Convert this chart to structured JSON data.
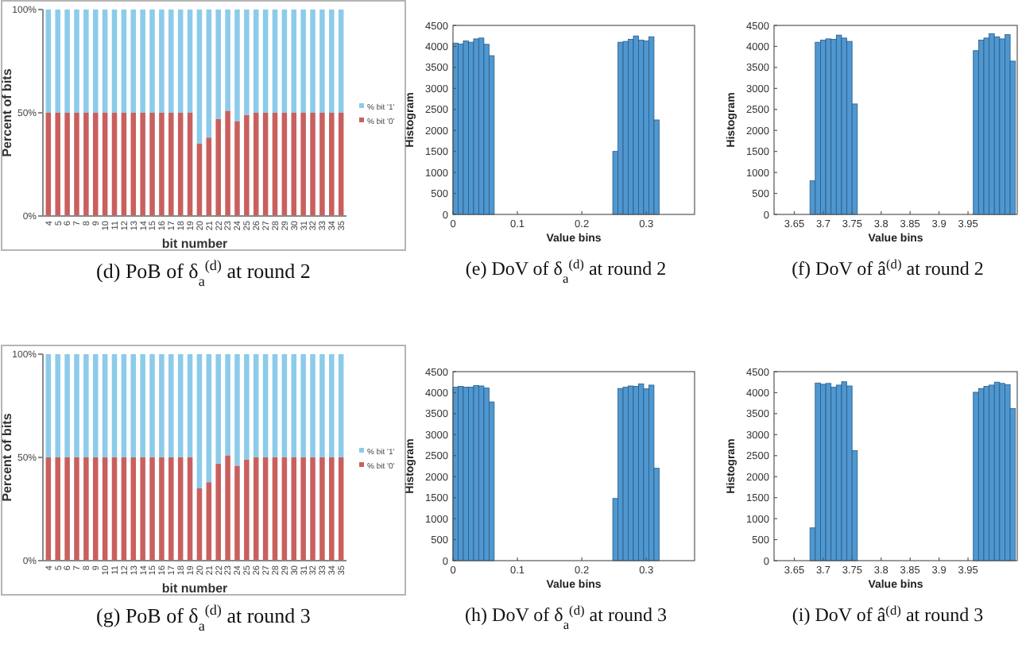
{
  "chart_data": [
    {
      "type": "bar",
      "title": "(d) PoB of δ$_{a}$$^{(d)}$ at round 2",
      "xlabel": "bit number",
      "ylabel": "Percent of bits",
      "categories": [
        "4",
        "5",
        "6",
        "7",
        "8",
        "9",
        "10",
        "11",
        "12",
        "13",
        "14",
        "15",
        "16",
        "17",
        "18",
        "19",
        "20",
        "21",
        "22",
        "23",
        "24",
        "25",
        "26",
        "27",
        "28",
        "29",
        "30",
        "31",
        "32",
        "33",
        "34",
        "35"
      ],
      "stacked": true,
      "legend": "right",
      "ylim": [
        0,
        100
      ],
      "yticks": [
        {
          "value": 0,
          "label": "0%"
        },
        {
          "value": 50,
          "label": "50%"
        },
        {
          "value": 100,
          "label": "100%"
        }
      ],
      "series": [
        {
          "name": "% bit '0'",
          "color": "#c9605e",
          "values": [
            50,
            50,
            50,
            50,
            50,
            50,
            50,
            50,
            50,
            50,
            50,
            50,
            50,
            50,
            50,
            50,
            35,
            38,
            47,
            51,
            46,
            49,
            50,
            50,
            50,
            50,
            50,
            50,
            50,
            50,
            50,
            50
          ]
        },
        {
          "name": "% bit '1'",
          "color": "#8ccbea",
          "values": [
            50,
            50,
            50,
            50,
            50,
            50,
            50,
            50,
            50,
            50,
            50,
            50,
            50,
            50,
            50,
            50,
            65,
            62,
            53,
            49,
            54,
            51,
            50,
            50,
            50,
            50,
            50,
            50,
            50,
            50,
            50,
            50
          ]
        }
      ]
    },
    {
      "type": "histogram",
      "title": "(e) DoV of δ$_{a}$$^{(d)}$ at round 2",
      "xlabel": "Value bins",
      "ylabel": "Histogram",
      "color": "#4f97d0",
      "xlim": [
        0,
        0.375
      ],
      "xticks": [
        0,
        0.1,
        0.2,
        0.3
      ],
      "ylim": [
        0,
        4500
      ],
      "yticks": [
        0,
        500,
        1000,
        1500,
        2000,
        2500,
        3000,
        3500,
        4000,
        4500
      ],
      "bins": [
        0,
        0.008,
        0.016,
        0.024,
        0.032,
        0.04,
        0.048,
        0.056,
        0.064,
        0.072,
        0.08,
        0.088,
        0.096,
        0.104,
        0.112,
        0.12,
        0.128,
        0.136,
        0.144,
        0.152,
        0.16,
        0.168,
        0.176,
        0.184,
        0.192,
        0.2,
        0.208,
        0.216,
        0.224,
        0.232,
        0.24,
        0.248,
        0.256,
        0.264,
        0.272,
        0.28,
        0.288,
        0.296,
        0.304,
        0.312,
        0.32
      ],
      "values": [
        4080,
        4060,
        4130,
        4100,
        4180,
        4200,
        4050,
        3780,
        0,
        0,
        0,
        0,
        0,
        0,
        0,
        0,
        0,
        0,
        0,
        0,
        0,
        0,
        0,
        0,
        0,
        0,
        0,
        0,
        0,
        0,
        0,
        1500,
        4100,
        4120,
        4170,
        4250,
        4150,
        4130,
        4230,
        2250
      ]
    },
    {
      "type": "histogram",
      "title": "(f) DoV of â$^{(d)}$ at round 2",
      "xlabel": "Value bins",
      "ylabel": "Histogram",
      "color": "#4f97d0",
      "xlim": [
        3.615,
        4.035
      ],
      "xticks": [
        3.65,
        3.7,
        3.75,
        3.8,
        3.85,
        3.9,
        3.95
      ],
      "ylim": [
        0,
        4500
      ],
      "yticks": [
        0,
        500,
        1000,
        1500,
        2000,
        2500,
        3000,
        3500,
        4000,
        4500
      ],
      "bins": [
        3.677,
        3.6861,
        3.6952,
        3.7043,
        3.7134,
        3.7225,
        3.7316,
        3.7407,
        3.7498,
        3.7589,
        3.768,
        3.7771,
        3.7862,
        3.7953,
        3.8044,
        3.8135,
        3.8226,
        3.8317,
        3.8408,
        3.8499,
        3.859,
        3.8681,
        3.8772,
        3.8863,
        3.8954,
        3.9045,
        3.9136,
        3.9227,
        3.9318,
        3.9409,
        3.95,
        3.9591,
        3.9682,
        3.9773,
        3.9864,
        3.9955,
        4.0046,
        4.0137,
        4.0228,
        4.0319
      ],
      "values": [
        800,
        4100,
        4150,
        4180,
        4170,
        4270,
        4200,
        4120,
        2630,
        0,
        0,
        0,
        0,
        0,
        0,
        0,
        0,
        0,
        0,
        0,
        0,
        0,
        0,
        0,
        0,
        0,
        0,
        0,
        0,
        0,
        0,
        3900,
        4150,
        4200,
        4300,
        4230,
        4180,
        4280,
        3650
      ]
    },
    {
      "type": "bar",
      "title": "(g) PoB of δ$_{a}$$^{(d)}$ at round 3",
      "xlabel": "bit number",
      "ylabel": "Percent of bits",
      "categories": [
        "4",
        "5",
        "6",
        "7",
        "8",
        "9",
        "10",
        "11",
        "12",
        "13",
        "14",
        "15",
        "16",
        "17",
        "18",
        "19",
        "20",
        "21",
        "22",
        "23",
        "24",
        "25",
        "26",
        "27",
        "28",
        "29",
        "30",
        "31",
        "32",
        "33",
        "34",
        "35"
      ],
      "stacked": true,
      "legend": "right",
      "ylim": [
        0,
        100
      ],
      "yticks": [
        {
          "value": 0,
          "label": "0%"
        },
        {
          "value": 50,
          "label": "50%"
        },
        {
          "value": 100,
          "label": "100%"
        }
      ],
      "series": [
        {
          "name": "% bit '0'",
          "color": "#c9605e",
          "values": [
            50,
            50,
            50,
            50,
            50,
            50,
            50,
            50,
            50,
            50,
            50,
            50,
            50,
            50,
            50,
            50,
            35,
            38,
            47,
            51,
            46,
            49,
            50,
            50,
            50,
            50,
            50,
            50,
            50,
            50,
            50,
            50
          ]
        },
        {
          "name": "% bit '1'",
          "color": "#8ccbea",
          "values": [
            50,
            50,
            50,
            50,
            50,
            50,
            50,
            50,
            50,
            50,
            50,
            50,
            50,
            50,
            50,
            50,
            65,
            62,
            53,
            49,
            54,
            51,
            50,
            50,
            50,
            50,
            50,
            50,
            50,
            50,
            50,
            50
          ]
        }
      ]
    },
    {
      "type": "histogram",
      "title": "(h) DoV of δ$_{a}$$^{(d)}$ at round 3",
      "xlabel": "Value bins",
      "ylabel": "Histogram",
      "color": "#4f97d0",
      "xlim": [
        0,
        0.375
      ],
      "xticks": [
        0,
        0.1,
        0.2,
        0.3
      ],
      "ylim": [
        0,
        4500
      ],
      "yticks": [
        0,
        500,
        1000,
        1500,
        2000,
        2500,
        3000,
        3500,
        4000,
        4500
      ],
      "bins": [
        0,
        0.008,
        0.016,
        0.024,
        0.032,
        0.04,
        0.048,
        0.056,
        0.064,
        0.072,
        0.08,
        0.088,
        0.096,
        0.104,
        0.112,
        0.12,
        0.128,
        0.136,
        0.144,
        0.152,
        0.16,
        0.168,
        0.176,
        0.184,
        0.192,
        0.2,
        0.208,
        0.216,
        0.224,
        0.232,
        0.24,
        0.248,
        0.256,
        0.264,
        0.272,
        0.28,
        0.288,
        0.296,
        0.304,
        0.312,
        0.32
      ],
      "values": [
        4130,
        4150,
        4130,
        4130,
        4170,
        4160,
        4110,
        3780,
        0,
        0,
        0,
        0,
        0,
        0,
        0,
        0,
        0,
        0,
        0,
        0,
        0,
        0,
        0,
        0,
        0,
        0,
        0,
        0,
        0,
        0,
        0,
        1480,
        4100,
        4130,
        4160,
        4150,
        4210,
        4090,
        4180,
        2200
      ]
    },
    {
      "type": "histogram",
      "title": "(i) DoV of â$^{(d)}$ at round 3",
      "xlabel": "Value bins",
      "ylabel": "Histogram",
      "color": "#4f97d0",
      "xlim": [
        3.615,
        4.035
      ],
      "xticks": [
        3.65,
        3.7,
        3.75,
        3.8,
        3.85,
        3.9,
        3.95
      ],
      "ylim": [
        0,
        4500
      ],
      "yticks": [
        0,
        500,
        1000,
        1500,
        2000,
        2500,
        3000,
        3500,
        4000,
        4500
      ],
      "bins": [
        3.677,
        3.6861,
        3.6952,
        3.7043,
        3.7134,
        3.7225,
        3.7316,
        3.7407,
        3.7498,
        3.7589,
        3.768,
        3.7771,
        3.7862,
        3.7953,
        3.8044,
        3.8135,
        3.8226,
        3.8317,
        3.8408,
        3.8499,
        3.859,
        3.8681,
        3.8772,
        3.8863,
        3.8954,
        3.9045,
        3.9136,
        3.9227,
        3.9318,
        3.9409,
        3.95,
        3.9591,
        3.9682,
        3.9773,
        3.9864,
        3.9955,
        4.0046,
        4.0137,
        4.0228,
        4.0319
      ],
      "values": [
        780,
        4230,
        4200,
        4220,
        4130,
        4180,
        4260,
        4160,
        2620,
        0,
        0,
        0,
        0,
        0,
        0,
        0,
        0,
        0,
        0,
        0,
        0,
        0,
        0,
        0,
        0,
        0,
        0,
        0,
        0,
        0,
        0,
        4010,
        4100,
        4150,
        4180,
        4250,
        4220,
        4190,
        3620
      ]
    }
  ]
}
